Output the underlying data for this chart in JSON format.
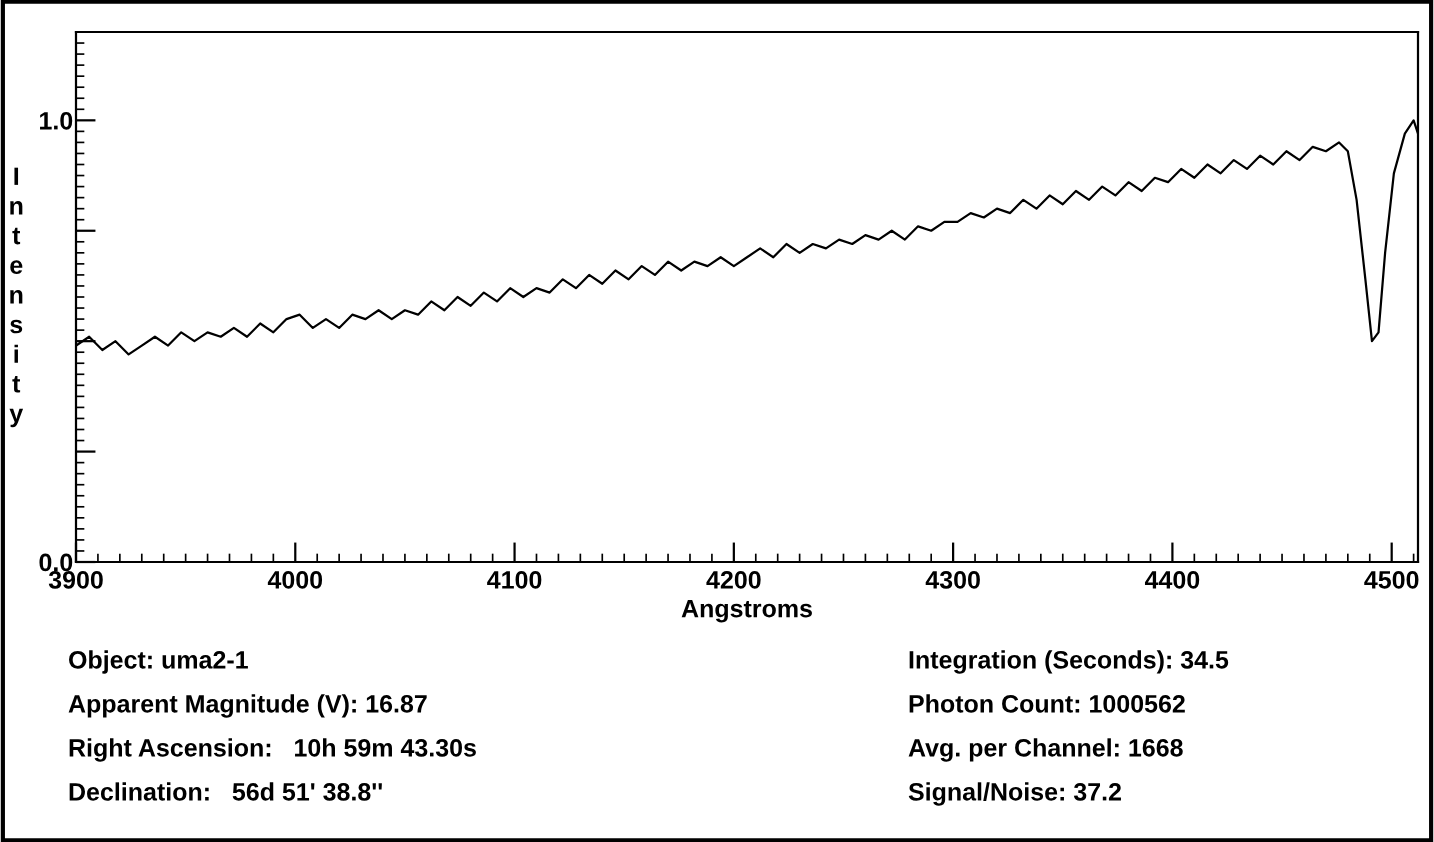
{
  "chart_data": {
    "type": "line",
    "xlabel": "Angstroms",
    "ylabel": "Intensity",
    "xlim": [
      3900,
      4512
    ],
    "ylim": [
      0,
      1.2
    ],
    "xticks": [
      3900,
      4000,
      4100,
      4200,
      4300,
      4400,
      4500
    ],
    "yticks": [
      {
        "value": 0,
        "label": "0.0"
      },
      {
        "value": 0.25,
        "label": null
      },
      {
        "value": 0.5,
        "label": null
      },
      {
        "value": 0.75,
        "label": null
      },
      {
        "value": 1,
        "label": "1.0"
      }
    ],
    "grid": false,
    "legend": false,
    "marker": "none",
    "line_style": "solid",
    "series": [
      {
        "color": "#000000",
        "x": [
          3900,
          3906,
          3912,
          3918,
          3924,
          3930,
          3936,
          3942,
          3948,
          3954,
          3960,
          3966,
          3972,
          3978,
          3984,
          3990,
          3996,
          4002,
          4008,
          4014,
          4020,
          4026,
          4032,
          4038,
          4044,
          4050,
          4056,
          4062,
          4068,
          4074,
          4080,
          4086,
          4092,
          4098,
          4104,
          4110,
          4116,
          4122,
          4128,
          4134,
          4140,
          4146,
          4152,
          4158,
          4164,
          4170,
          4176,
          4182,
          4188,
          4194,
          4200,
          4206,
          4212,
          4218,
          4224,
          4230,
          4236,
          4242,
          4248,
          4254,
          4260,
          4266,
          4272,
          4278,
          4284,
          4290,
          4296,
          4302,
          4308,
          4314,
          4320,
          4326,
          4332,
          4338,
          4344,
          4350,
          4356,
          4362,
          4368,
          4374,
          4380,
          4386,
          4392,
          4398,
          4404,
          4410,
          4416,
          4422,
          4428,
          4434,
          4440,
          4446,
          4452,
          4458,
          4464,
          4470,
          4476,
          4480,
          4484,
          4488,
          4491,
          4494,
          4497,
          4501,
          4506,
          4510,
          4512
        ],
        "values": [
          0.49,
          0.51,
          0.48,
          0.5,
          0.47,
          0.49,
          0.51,
          0.49,
          0.52,
          0.5,
          0.52,
          0.51,
          0.53,
          0.51,
          0.54,
          0.52,
          0.55,
          0.56,
          0.53,
          0.55,
          0.53,
          0.56,
          0.55,
          0.57,
          0.55,
          0.57,
          0.56,
          0.59,
          0.57,
          0.6,
          0.58,
          0.61,
          0.59,
          0.62,
          0.6,
          0.62,
          0.61,
          0.64,
          0.62,
          0.65,
          0.63,
          0.66,
          0.64,
          0.67,
          0.65,
          0.68,
          0.66,
          0.68,
          0.67,
          0.69,
          0.67,
          0.69,
          0.71,
          0.69,
          0.72,
          0.7,
          0.72,
          0.71,
          0.73,
          0.72,
          0.74,
          0.73,
          0.75,
          0.73,
          0.76,
          0.75,
          0.77,
          0.77,
          0.79,
          0.78,
          0.8,
          0.79,
          0.82,
          0.8,
          0.83,
          0.81,
          0.84,
          0.82,
          0.85,
          0.83,
          0.86,
          0.84,
          0.87,
          0.86,
          0.89,
          0.87,
          0.9,
          0.88,
          0.91,
          0.89,
          0.92,
          0.9,
          0.93,
          0.91,
          0.94,
          0.93,
          0.95,
          0.93,
          0.82,
          0.64,
          0.5,
          0.52,
          0.7,
          0.88,
          0.97,
          1.0,
          0.97
        ]
      }
    ],
    "annotations": [
      "Object: uma2-1",
      "Apparent Magnitude (V): 16.87",
      "Right Ascension:   10h 59m 43.30s",
      "Declination:   56d 51' 38.8''",
      "Integration (Seconds): 34.5",
      "Photon Count: 1000562",
      "Avg. per Channel: 1668",
      "Signal/Noise: 37.2"
    ]
  }
}
